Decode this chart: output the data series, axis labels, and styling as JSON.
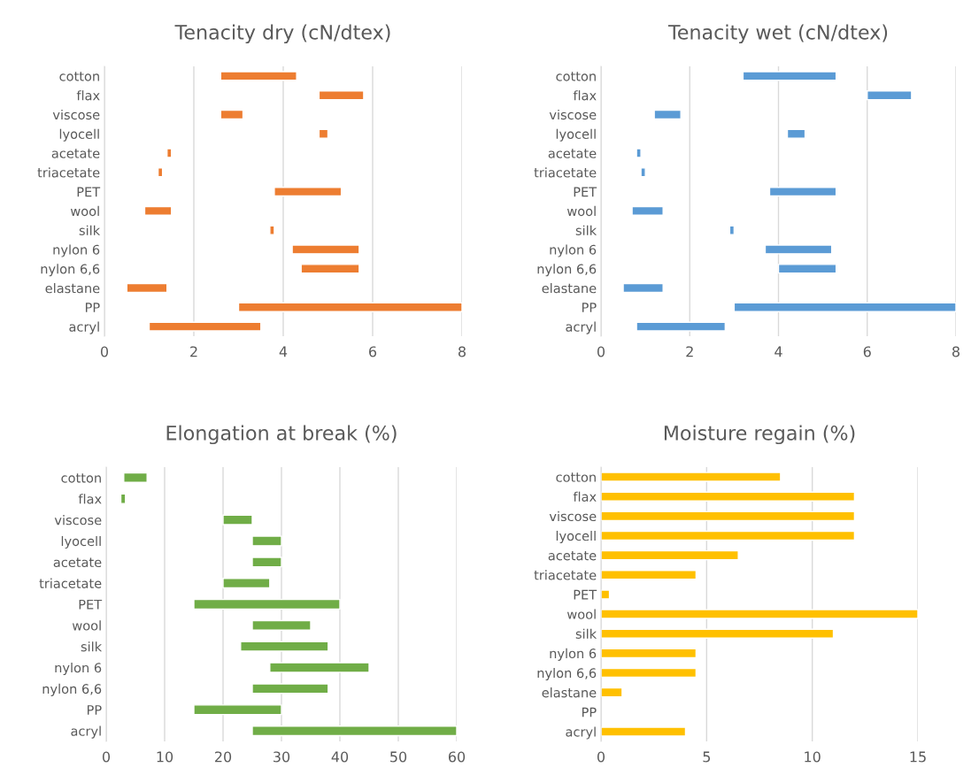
{
  "chart_data": [
    {
      "type": "bar",
      "orientation": "horizontal",
      "title": "Tenacity dry (cN/dtex)",
      "categories": [
        "cotton",
        "flax",
        "viscose",
        "lyocell",
        "acetate",
        "triacetate",
        "PET",
        "wool",
        "silk",
        "nylon 6",
        "nylon 6,6",
        "elastane",
        "PP",
        "acryl"
      ],
      "base": [
        2.6,
        4.8,
        2.6,
        4.8,
        1.4,
        1.2,
        3.8,
        0.9,
        3.7,
        4.2,
        4.4,
        0.5,
        3.0,
        1.0
      ],
      "values": [
        1.7,
        1.0,
        0.5,
        0.2,
        0.1,
        0.1,
        1.5,
        0.6,
        0.1,
        1.5,
        1.3,
        0.9,
        5.0,
        2.5
      ],
      "color": "#ed7d31",
      "xlim": [
        0,
        8
      ],
      "xticks": [
        0,
        2,
        4,
        6,
        8
      ],
      "grid": "x"
    },
    {
      "type": "bar",
      "orientation": "horizontal",
      "title": "Tenacity wet (cN/dtex)",
      "categories": [
        "cotton",
        "flax",
        "viscose",
        "lyocell",
        "acetate",
        "triacetate",
        "PET",
        "wool",
        "silk",
        "nylon 6",
        "nylon 6,6",
        "elastane",
        "PP",
        "acryl"
      ],
      "base": [
        3.2,
        6.0,
        1.2,
        4.2,
        0.8,
        0.9,
        3.8,
        0.7,
        2.9,
        3.7,
        4.0,
        0.5,
        3.0,
        0.8
      ],
      "values": [
        2.1,
        1.0,
        0.6,
        0.4,
        0.1,
        0.1,
        1.5,
        0.7,
        0.1,
        1.5,
        1.3,
        0.9,
        5.0,
        2.0
      ],
      "color": "#5b9bd5",
      "xlim": [
        0,
        8
      ],
      "xticks": [
        0,
        2,
        4,
        6,
        8
      ],
      "grid": "x"
    },
    {
      "type": "bar",
      "orientation": "horizontal",
      "title": "Elongation at break (%)",
      "categories": [
        "cotton",
        "flax",
        "viscose",
        "lyocell",
        "acetate",
        "triacetate",
        "PET",
        "wool",
        "silk",
        "nylon 6",
        "nylon 6,6",
        "PP",
        "acryl"
      ],
      "base": [
        3,
        2.5,
        20,
        25,
        25,
        20,
        15,
        25,
        23,
        28,
        25,
        15,
        25
      ],
      "values": [
        4,
        0.8,
        5,
        5,
        5,
        8,
        25,
        10,
        15,
        17,
        13,
        15,
        35
      ],
      "color": "#70ad47",
      "xlim": [
        0,
        60
      ],
      "xticks": [
        0,
        10,
        20,
        30,
        40,
        50,
        60
      ],
      "grid": "x"
    },
    {
      "type": "bar",
      "orientation": "horizontal",
      "title": "Moisture regain (%)",
      "categories": [
        "cotton",
        "flax",
        "viscose",
        "lyocell",
        "acetate",
        "triacetate",
        "PET",
        "wool",
        "silk",
        "nylon 6",
        "nylon 6,6",
        "elastane",
        "PP",
        "acryl"
      ],
      "values": [
        8.5,
        12,
        12,
        12,
        6.5,
        4.5,
        0.4,
        15,
        11,
        4.5,
        4.5,
        1,
        null,
        4
      ],
      "color": "#ffc000",
      "xlim": [
        0,
        15
      ],
      "xticks": [
        0,
        5,
        10,
        15
      ],
      "grid": "x"
    }
  ]
}
